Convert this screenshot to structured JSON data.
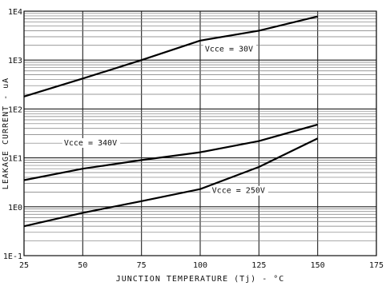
{
  "chart_data": {
    "type": "line",
    "title": "",
    "xlabel": "JUNCTION TEMPERATURE (Tj) - °C",
    "ylabel": "LEAKAGE CURRENT - uA",
    "xlim": [
      25,
      175
    ],
    "ylim": [
      0.1,
      10000
    ],
    "y_scale": "log",
    "grid": true,
    "x_ticks": [
      "25",
      "50",
      "75",
      "100",
      "125",
      "150",
      "175"
    ],
    "x_tick_values": [
      25,
      50,
      75,
      100,
      125,
      150,
      175
    ],
    "y_ticks": [
      "1E-1",
      "1E0",
      "1E1",
      "1E2",
      "1E3",
      "1E4"
    ],
    "y_tick_values": [
      0.1,
      1,
      10,
      100,
      1000,
      10000
    ],
    "series": [
      {
        "name": "",
        "x": [
          25,
          50,
          75,
          100,
          125,
          150
        ],
        "y": [
          180,
          420,
          1000,
          2500,
          4000,
          7800
        ]
      },
      {
        "name": "",
        "x": [
          25,
          50,
          75,
          100,
          125,
          150
        ],
        "y": [
          3.5,
          6,
          9,
          13,
          22,
          48
        ]
      },
      {
        "name": "",
        "x": [
          25,
          50,
          75,
          100,
          125,
          150
        ],
        "y": [
          0.4,
          0.75,
          1.3,
          2.3,
          6.5,
          25
        ]
      }
    ],
    "annotations": [
      {
        "text": "Vcce = 30V",
        "x": 102,
        "y": 1500
      },
      {
        "text": "Vcce = 340V",
        "x": 42,
        "y": 18
      },
      {
        "text": "Vcce = 250V",
        "x": 105,
        "y": 1.9
      }
    ]
  }
}
